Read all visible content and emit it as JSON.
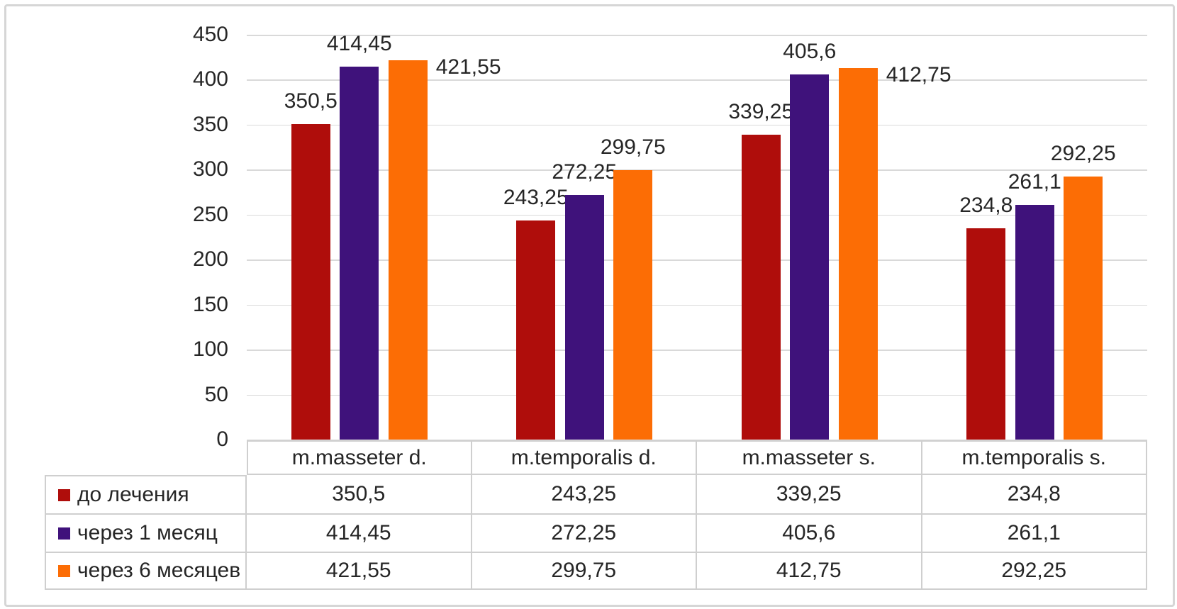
{
  "chart_data": {
    "type": "bar",
    "title": "",
    "xlabel": "",
    "ylabel": "",
    "categories": [
      "m.masseter d.",
      "m.temporalis d.",
      "m.masseter s.",
      "m.temporalis s."
    ],
    "series": [
      {
        "name": "до лечения",
        "color": "#af0d0b",
        "values": [
          350.5,
          243.25,
          339.25,
          234.8
        ],
        "labels": [
          "350,5",
          "243,25",
          "339,25",
          "234,8"
        ],
        "label_placement": [
          "above",
          "above",
          "above",
          "above"
        ]
      },
      {
        "name": "через 1 месяц",
        "color": "#3f127b",
        "values": [
          414.45,
          272.25,
          405.6,
          261.1
        ],
        "labels": [
          "414,45",
          "272,25",
          "405,6",
          "261,1"
        ],
        "label_placement": [
          "above",
          "above",
          "above",
          "above"
        ]
      },
      {
        "name": "через 6 месяцев",
        "color": "#fc6d05",
        "values": [
          421.55,
          299.75,
          412.75,
          292.25
        ],
        "labels": [
          "421,55",
          "299,75",
          "412,75",
          "292,25"
        ],
        "label_placement": [
          "right",
          "above",
          "right",
          "above"
        ]
      }
    ],
    "ylim": [
      0,
      450
    ],
    "ytick_step": 50,
    "ytick_labels": [
      "0",
      "50",
      "100",
      "150",
      "200",
      "250",
      "300",
      "350",
      "400",
      "450"
    ],
    "grid": true,
    "legend_position": "table-left-column",
    "data_table_shown": true
  },
  "colors": {
    "grid_line": "#d9d9d9",
    "table_border": "#cfcfcf",
    "figure_border": "#d6d6d6",
    "text": "#262626",
    "background": "#ffffff"
  }
}
